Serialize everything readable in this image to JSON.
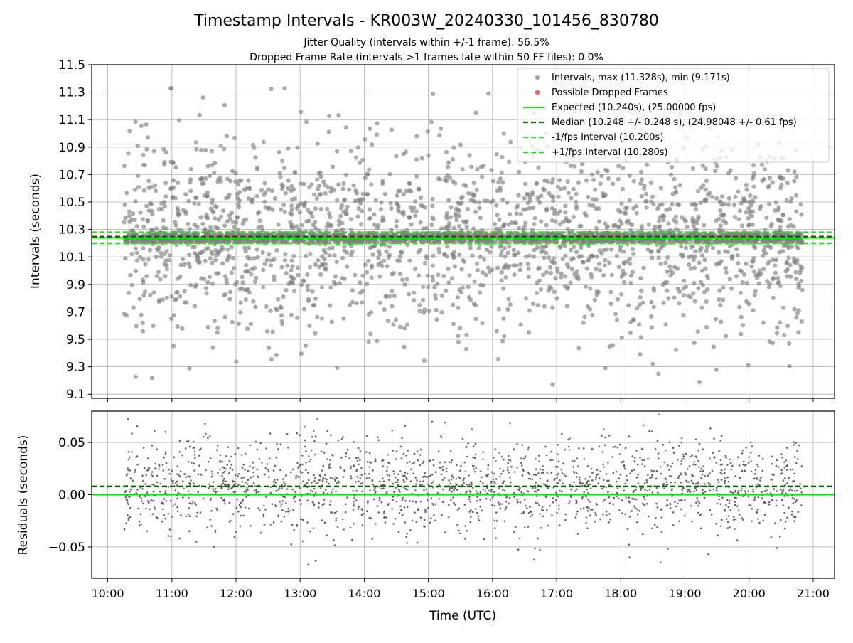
{
  "header": {
    "title": "Timestamp Intervals - KR003W_20240330_101456_830780",
    "subtitle1": "Jitter Quality (intervals within +/-1 frame): 56.5%",
    "subtitle2": "Dropped Frame Rate (intervals >1 frames late within 50 FF files): 0.0%"
  },
  "colors": {
    "points_top": "#808080",
    "points_bottom": "#666666",
    "dropped": "#ff5a5a",
    "expected": "#00ee00",
    "median": "#006400",
    "bounds": "#22dd22",
    "grid": "#b0b0b0"
  },
  "chart_data": [
    {
      "type": "scatter",
      "panel": "intervals",
      "ylabel": "Intervals (seconds)",
      "xlim": [
        "09:45",
        "21:20"
      ],
      "ylim": [
        9.07,
        11.5
      ],
      "yticks": [
        "9.1",
        "9.3",
        "9.5",
        "9.7",
        "9.9",
        "10.1",
        "10.3",
        "10.5",
        "10.7",
        "10.9",
        "11.1",
        "11.3",
        "11.5"
      ],
      "x_range_data": [
        "10:15",
        "20:50"
      ],
      "grid": true,
      "legend_position": "top-right",
      "series": [
        {
          "name": "Intervals, max (11.328s), min (9.171s)",
          "kind": "points",
          "max": 11.328,
          "min": 9.171,
          "approx_count": 3700
        },
        {
          "name": "Possible Dropped Frames",
          "kind": "points",
          "values": []
        }
      ],
      "lines": [
        {
          "name": "Expected (10.240s), (25.00000 fps)",
          "y": 10.24,
          "style": "solid"
        },
        {
          "name": "Median (10.248 +/- 0.248 s), (24.98048 +/- 0.61 fps)",
          "y": 10.248,
          "style": "dashed"
        },
        {
          "name": "-1/fps Interval (10.200s)",
          "y": 10.2,
          "style": "dashed"
        },
        {
          "name": "+1/fps Interval (10.280s)",
          "y": 10.28,
          "style": "dashed"
        }
      ]
    },
    {
      "type": "scatter",
      "panel": "residuals",
      "ylabel": "Residuals (seconds)",
      "xlabel": "Time (UTC)",
      "xlim": [
        "09:45",
        "21:20"
      ],
      "xticks": [
        "10:00",
        "11:00",
        "12:00",
        "13:00",
        "14:00",
        "15:00",
        "16:00",
        "17:00",
        "18:00",
        "19:00",
        "20:00",
        "21:00"
      ],
      "ylim": [
        -0.08,
        0.08
      ],
      "yticks": [
        "−0.05",
        "0.00",
        "0.05"
      ],
      "grid": true,
      "lines": [
        {
          "y": 0.0,
          "style": "solid"
        },
        {
          "y": 0.008,
          "style": "dashed"
        }
      ]
    }
  ]
}
